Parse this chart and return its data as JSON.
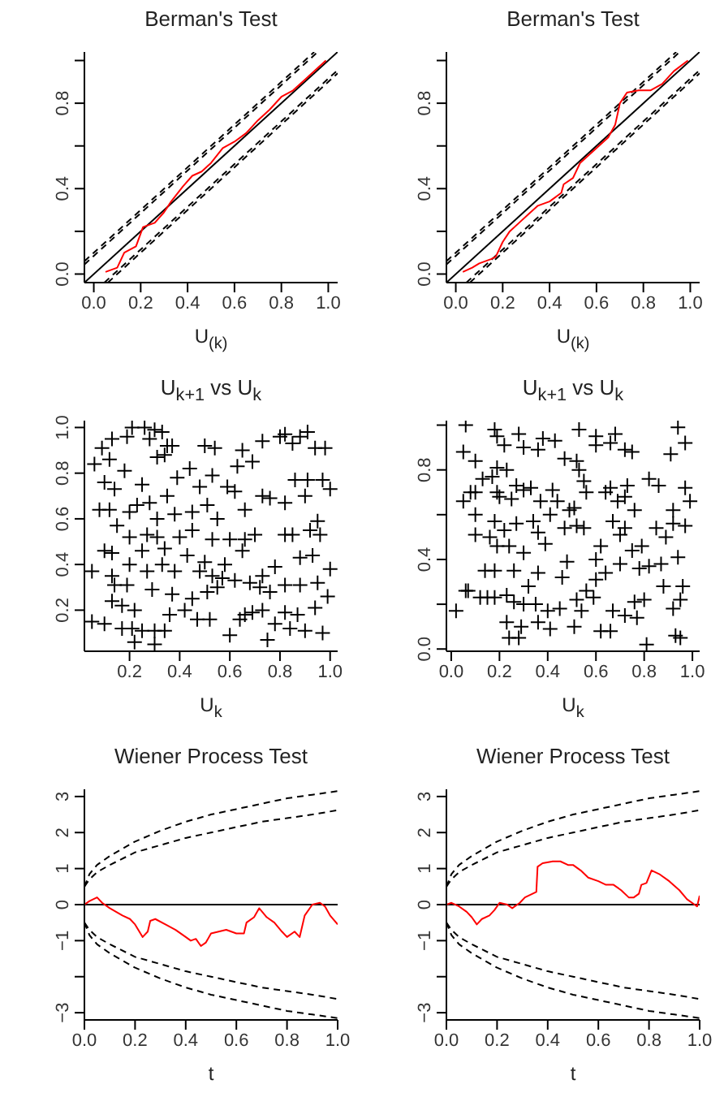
{
  "chart_data": [
    {
      "type": "line",
      "title": "Berman's Test",
      "xlabel": "U$_{(k)}$",
      "xlim": [
        -0.04,
        1.04
      ],
      "ylim": [
        -0.04,
        1.04
      ],
      "xticks": [
        {
          "value": 0,
          "label": "0.0"
        },
        {
          "value": 0.2,
          "label": "0.2"
        },
        {
          "value": 0.4,
          "label": "0.4"
        },
        {
          "value": 0.6,
          "label": "0.6"
        },
        {
          "value": 0.8,
          "label": "0.8"
        },
        {
          "value": 1,
          "label": "1.0"
        }
      ],
      "yticks": [
        {
          "value": 0,
          "label": "0.0"
        },
        {
          "value": 0.2,
          "label": null
        },
        {
          "value": 0.4,
          "label": "0.4"
        },
        {
          "value": 0.6,
          "label": null
        },
        {
          "value": 0.8,
          "label": "0.8"
        },
        {
          "value": 1,
          "label": null
        }
      ],
      "series": [
        {
          "color": "#000000",
          "line_style": "solid",
          "x": [
            -0.04,
            1.04
          ],
          "values": [
            -0.04,
            1.04
          ]
        },
        {
          "color": "#000000",
          "line_style": "dashed",
          "x": [
            -0.04,
            0.94
          ],
          "values": [
            0.06,
            1.04
          ]
        },
        {
          "color": "#000000",
          "line_style": "dashed",
          "x": [
            -0.04,
            0.955
          ],
          "values": [
            0.045,
            1.04
          ]
        },
        {
          "color": "#000000",
          "line_style": "dashed",
          "x": [
            0.06,
            1.04
          ],
          "values": [
            -0.04,
            0.94
          ]
        },
        {
          "color": "#000000",
          "line_style": "dashed",
          "x": [
            0.045,
            1.04
          ],
          "values": [
            -0.04,
            0.955
          ]
        },
        {
          "color": "#ff0000",
          "line_style": "solid",
          "x": [
            0.05,
            0.1,
            0.13,
            0.18,
            0.21,
            0.26,
            0.3,
            0.33,
            0.38,
            0.42,
            0.46,
            0.5,
            0.55,
            0.6,
            0.65,
            0.7,
            0.75,
            0.8,
            0.85,
            0.9,
            0.95,
            0.99
          ],
          "values": [
            0.01,
            0.03,
            0.1,
            0.13,
            0.22,
            0.24,
            0.29,
            0.34,
            0.41,
            0.46,
            0.48,
            0.52,
            0.59,
            0.62,
            0.66,
            0.72,
            0.77,
            0.83,
            0.86,
            0.91,
            0.96,
            1.0
          ]
        }
      ]
    },
    {
      "type": "line",
      "title": "Berman's Test",
      "xlabel": "U$_{(k)}$",
      "xlim": [
        -0.04,
        1.04
      ],
      "ylim": [
        -0.04,
        1.04
      ],
      "xticks": [
        {
          "value": 0,
          "label": "0.0"
        },
        {
          "value": 0.2,
          "label": "0.2"
        },
        {
          "value": 0.4,
          "label": "0.4"
        },
        {
          "value": 0.6,
          "label": "0.6"
        },
        {
          "value": 0.8,
          "label": "0.8"
        },
        {
          "value": 1,
          "label": "1.0"
        }
      ],
      "yticks": [
        {
          "value": 0,
          "label": "0.0"
        },
        {
          "value": 0.2,
          "label": null
        },
        {
          "value": 0.4,
          "label": "0.4"
        },
        {
          "value": 0.6,
          "label": null
        },
        {
          "value": 0.8,
          "label": "0.8"
        },
        {
          "value": 1,
          "label": null
        }
      ],
      "series": [
        {
          "color": "#000000",
          "line_style": "solid",
          "x": [
            -0.04,
            1.04
          ],
          "values": [
            -0.04,
            1.04
          ]
        },
        {
          "color": "#000000",
          "line_style": "dashed",
          "x": [
            -0.04,
            0.94
          ],
          "values": [
            0.06,
            1.04
          ]
        },
        {
          "color": "#000000",
          "line_style": "dashed",
          "x": [
            -0.04,
            0.955
          ],
          "values": [
            0.045,
            1.04
          ]
        },
        {
          "color": "#000000",
          "line_style": "dashed",
          "x": [
            0.06,
            1.04
          ],
          "values": [
            -0.04,
            0.94
          ]
        },
        {
          "color": "#000000",
          "line_style": "dashed",
          "x": [
            0.045,
            1.04
          ],
          "values": [
            -0.04,
            0.955
          ]
        },
        {
          "color": "#ff0000",
          "line_style": "solid",
          "x": [
            0.03,
            0.07,
            0.1,
            0.15,
            0.17,
            0.2,
            0.23,
            0.27,
            0.31,
            0.35,
            0.4,
            0.45,
            0.46,
            0.5,
            0.53,
            0.57,
            0.61,
            0.65,
            0.68,
            0.7,
            0.73,
            0.78,
            0.83,
            0.88,
            0.93,
            0.99
          ],
          "values": [
            0.01,
            0.03,
            0.05,
            0.07,
            0.08,
            0.15,
            0.2,
            0.24,
            0.28,
            0.32,
            0.34,
            0.38,
            0.42,
            0.45,
            0.52,
            0.56,
            0.6,
            0.64,
            0.7,
            0.8,
            0.85,
            0.86,
            0.86,
            0.89,
            0.95,
            1.0
          ]
        }
      ]
    },
    {
      "type": "scatter",
      "title": "U$_{k+1}$ vs U$_{k}$",
      "xlabel": "U$_{k}$",
      "xlim": [
        0.02,
        1.03
      ],
      "ylim": [
        0.02,
        1.03
      ],
      "marker": "cross",
      "xticks": [
        {
          "value": 0.2,
          "label": "0.2"
        },
        {
          "value": 0.4,
          "label": "0.4"
        },
        {
          "value": 0.6,
          "label": "0.6"
        },
        {
          "value": 0.8,
          "label": "0.8"
        },
        {
          "value": 1,
          "label": "1.0"
        }
      ],
      "yticks": [
        {
          "value": 0.2,
          "label": "0.2"
        },
        {
          "value": 0.4,
          "label": "0.4"
        },
        {
          "value": 0.6,
          "label": "0.6"
        },
        {
          "value": 0.8,
          "label": "0.8"
        },
        {
          "value": 1,
          "label": "1.0"
        }
      ],
      "series": [
        {
          "color": "#000000",
          "x": [
            0.06,
            0.09,
            0.12,
            0.13,
            0.19,
            0.21,
            0.26,
            0.3,
            0.33,
            0.28,
            0.35,
            0.37,
            0.34,
            0.31,
            0.5,
            0.54,
            0.44,
            0.39,
            0.48,
            0.53,
            0.59,
            0.63,
            0.65,
            0.69,
            0.73,
            0.82,
            0.8,
            0.85,
            0.88,
            0.91,
            0.94,
            0.98,
            0.86,
            0.91,
            0.97,
            1.0,
            0.1,
            0.14,
            0.18,
            0.25,
            0.2,
            0.12,
            0.08,
            0.23,
            0.28,
            0.35,
            0.31,
            0.38,
            0.45,
            0.51,
            0.55,
            0.62,
            0.66,
            0.73,
            0.76,
            0.82,
            0.9,
            0.95,
            0.92,
            0.96,
            0.82,
            0.85,
            0.15,
            0.2,
            0.27,
            0.31,
            0.4,
            0.45,
            0.53,
            0.6,
            0.66,
            0.7,
            0.1,
            0.13,
            0.25,
            0.34,
            0.43,
            0.5,
            0.58,
            0.65,
            0.88,
            0.93,
            0.05,
            0.13,
            0.2,
            0.27,
            0.33,
            0.38,
            0.48,
            0.53,
            0.57,
            0.62,
            0.68,
            0.73,
            0.78,
            0.82,
            0.88,
            0.95,
            1.0,
            0.14,
            0.19,
            0.29,
            0.37,
            0.45,
            0.51,
            0.55,
            0.72,
            0.76,
            0.13,
            0.17,
            0.22,
            0.36,
            0.42,
            0.47,
            0.52,
            0.64,
            0.69,
            0.73,
            0.78,
            0.82,
            0.87,
            0.94,
            0.99,
            0.05,
            0.1,
            0.17,
            0.21,
            0.25,
            0.3,
            0.34,
            0.22,
            0.3,
            0.6,
            0.66,
            0.75,
            0.84,
            0.9,
            0.97
          ],
          "values": [
            0.84,
            0.91,
            0.86,
            0.95,
            0.96,
            1.0,
            1.0,
            0.99,
            0.98,
            0.95,
            0.92,
            0.92,
            0.88,
            0.87,
            0.92,
            0.91,
            0.82,
            0.78,
            0.74,
            0.79,
            0.74,
            0.83,
            0.9,
            0.85,
            0.94,
            0.97,
            0.96,
            0.93,
            0.96,
            0.98,
            0.91,
            0.91,
            0.77,
            0.77,
            0.77,
            0.73,
            0.76,
            0.73,
            0.81,
            0.75,
            0.63,
            0.64,
            0.64,
            0.66,
            0.67,
            0.7,
            0.6,
            0.62,
            0.63,
            0.66,
            0.6,
            0.72,
            0.64,
            0.7,
            0.69,
            0.67,
            0.7,
            0.59,
            0.55,
            0.53,
            0.53,
            0.53,
            0.57,
            0.52,
            0.53,
            0.52,
            0.52,
            0.55,
            0.51,
            0.51,
            0.51,
            0.53,
            0.46,
            0.45,
            0.46,
            0.47,
            0.44,
            0.41,
            0.4,
            0.46,
            0.43,
            0.44,
            0.37,
            0.35,
            0.4,
            0.37,
            0.4,
            0.37,
            0.37,
            0.35,
            0.34,
            0.33,
            0.32,
            0.35,
            0.39,
            0.31,
            0.31,
            0.32,
            0.38,
            0.31,
            0.31,
            0.29,
            0.27,
            0.25,
            0.28,
            0.3,
            0.3,
            0.28,
            0.24,
            0.22,
            0.2,
            0.18,
            0.2,
            0.16,
            0.16,
            0.16,
            0.19,
            0.2,
            0.14,
            0.19,
            0.18,
            0.21,
            0.26,
            0.15,
            0.14,
            0.12,
            0.12,
            0.11,
            0.11,
            0.11,
            0.06,
            0.05,
            0.09,
            0.18,
            0.07,
            0.12,
            0.11,
            0.1
          ]
        }
      ]
    },
    {
      "type": "scatter",
      "title": "U$_{k+1}$ vs U$_{k}$",
      "xlabel": "U$_{k}$",
      "xlim": [
        -0.02,
        1.03
      ],
      "ylim": [
        -0.01,
        1.02
      ],
      "marker": "cross",
      "xticks": [
        {
          "value": 0,
          "label": "0.0"
        },
        {
          "value": 0.2,
          "label": "0.2"
        },
        {
          "value": 0.4,
          "label": "0.4"
        },
        {
          "value": 0.6,
          "label": "0.6"
        },
        {
          "value": 0.8,
          "label": "0.8"
        },
        {
          "value": 1,
          "label": "1.0"
        }
      ],
      "yticks": [
        {
          "value": 0,
          "label": "0.0"
        },
        {
          "value": 0.2,
          "label": null
        },
        {
          "value": 0.4,
          "label": "0.4"
        },
        {
          "value": 0.6,
          "label": null
        },
        {
          "value": 0.8,
          "label": "0.8"
        },
        {
          "value": 1,
          "label": null
        }
      ],
      "series": [
        {
          "color": "#000000",
          "x": [
            0.06,
            0.05,
            0.1,
            0.18,
            0.19,
            0.22,
            0.28,
            0.3,
            0.36,
            0.38,
            0.43,
            0.47,
            0.53,
            0.52,
            0.6,
            0.6,
            0.66,
            0.68,
            0.72,
            0.75,
            0.94,
            0.97,
            0.91,
            0.05,
            0.08,
            0.1,
            0.13,
            0.17,
            0.19,
            0.23,
            0.19,
            0.2,
            0.25,
            0.27,
            0.3,
            0.33,
            0.37,
            0.42,
            0.44,
            0.49,
            0.51,
            0.53,
            0.55,
            0.56,
            0.64,
            0.66,
            0.69,
            0.72,
            0.73,
            0.76,
            0.82,
            0.86,
            0.92,
            0.97,
            0.99,
            0.1,
            0.1,
            0.18,
            0.16,
            0.19,
            0.22,
            0.24,
            0.27,
            0.3,
            0.34,
            0.36,
            0.39,
            0.41,
            0.47,
            0.52,
            0.55,
            0.6,
            0.62,
            0.67,
            0.7,
            0.72,
            0.75,
            0.79,
            0.85,
            0.89,
            0.92,
            0.97,
            0.14,
            0.18,
            0.26,
            0.32,
            0.36,
            0.46,
            0.48,
            0.56,
            0.6,
            0.64,
            0.7,
            0.78,
            0.82,
            0.87,
            0.94,
            0.06,
            0.07,
            0.12,
            0.15,
            0.18,
            0.23,
            0.26,
            0.3,
            0.35,
            0.4,
            0.45,
            0.52,
            0.54,
            0.59,
            0.67,
            0.72,
            0.76,
            0.8,
            0.88,
            0.92,
            0.95,
            0.02,
            0.23,
            0.24,
            0.28,
            0.29,
            0.36,
            0.41,
            0.51,
            0.62,
            0.66,
            0.77,
            0.81,
            0.93,
            0.95,
            0.96
          ],
          "values": [
            1.0,
            0.88,
            0.84,
            0.98,
            0.95,
            0.91,
            0.96,
            0.9,
            0.89,
            0.94,
            0.93,
            0.85,
            0.98,
            0.84,
            0.95,
            0.91,
            0.92,
            0.96,
            0.89,
            0.88,
            0.99,
            0.92,
            0.87,
            0.66,
            0.7,
            0.7,
            0.76,
            0.77,
            0.81,
            0.8,
            0.7,
            0.68,
            0.67,
            0.73,
            0.71,
            0.72,
            0.66,
            0.71,
            0.66,
            0.62,
            0.63,
            0.8,
            0.75,
            0.7,
            0.7,
            0.72,
            0.66,
            0.68,
            0.73,
            0.62,
            0.76,
            0.73,
            0.62,
            0.72,
            0.66,
            0.6,
            0.51,
            0.57,
            0.5,
            0.46,
            0.53,
            0.46,
            0.56,
            0.43,
            0.57,
            0.52,
            0.47,
            0.6,
            0.54,
            0.55,
            0.54,
            0.4,
            0.46,
            0.57,
            0.51,
            0.54,
            0.44,
            0.46,
            0.54,
            0.5,
            0.56,
            0.55,
            0.35,
            0.35,
            0.35,
            0.28,
            0.34,
            0.32,
            0.39,
            0.26,
            0.31,
            0.34,
            0.38,
            0.36,
            0.37,
            0.38,
            0.41,
            0.26,
            0.26,
            0.23,
            0.23,
            0.23,
            0.24,
            0.21,
            0.2,
            0.2,
            0.17,
            0.18,
            0.22,
            0.17,
            0.23,
            0.17,
            0.15,
            0.21,
            0.22,
            0.28,
            0.18,
            0.22,
            0.17,
            0.12,
            0.05,
            0.05,
            0.1,
            0.12,
            0.09,
            0.1,
            0.08,
            0.08,
            0.14,
            0.02,
            0.06,
            0.05,
            0.28
          ]
        }
      ]
    },
    {
      "type": "line",
      "title": "Wiener Process Test",
      "xlabel": "t",
      "xlim": [
        0,
        1
      ],
      "ylim": [
        -3.2,
        3.2
      ],
      "xticks": [
        {
          "value": 0,
          "label": "0.0"
        },
        {
          "value": 0.2,
          "label": "0.2"
        },
        {
          "value": 0.4,
          "label": "0.4"
        },
        {
          "value": 0.6,
          "label": "0.6"
        },
        {
          "value": 0.8,
          "label": "0.8"
        },
        {
          "value": 1,
          "label": "1.0"
        }
      ],
      "yticks": [
        {
          "value": -3,
          "label": "−3"
        },
        {
          "value": -2,
          "label": null
        },
        {
          "value": -1,
          "label": "−1"
        },
        {
          "value": 0,
          "label": "0"
        },
        {
          "value": 1,
          "label": "1"
        },
        {
          "value": 2,
          "label": "2"
        },
        {
          "value": 3,
          "label": "3"
        }
      ],
      "ref_lines": [
        {
          "axis": "y",
          "value": 0,
          "color": "#000000",
          "line_style": "solid"
        }
      ],
      "series": [
        {
          "color": "#000000",
          "line_style": "dashed",
          "x": [
            0,
            0.02,
            0.05,
            0.1,
            0.2,
            0.3,
            0.4,
            0.5,
            0.6,
            0.7,
            0.8,
            0.9,
            1.0
          ],
          "values": [
            0.5,
            0.85,
            1.1,
            1.35,
            1.75,
            2.05,
            2.3,
            2.5,
            2.65,
            2.8,
            2.95,
            3.05,
            3.15
          ]
        },
        {
          "color": "#000000",
          "line_style": "dashed",
          "x": [
            0,
            0.02,
            0.05,
            0.1,
            0.2,
            0.3,
            0.4,
            0.5,
            0.6,
            0.7,
            0.8,
            0.9,
            1.0
          ],
          "values": [
            0.5,
            0.7,
            0.9,
            1.1,
            1.45,
            1.65,
            1.85,
            2.0,
            2.15,
            2.3,
            2.4,
            2.5,
            2.62
          ]
        },
        {
          "color": "#000000",
          "line_style": "dashed",
          "x": [
            0,
            0.02,
            0.05,
            0.1,
            0.2,
            0.3,
            0.4,
            0.5,
            0.6,
            0.7,
            0.8,
            0.9,
            1.0
          ],
          "values": [
            -0.5,
            -0.85,
            -1.1,
            -1.35,
            -1.75,
            -2.05,
            -2.3,
            -2.5,
            -2.65,
            -2.8,
            -2.95,
            -3.05,
            -3.15
          ]
        },
        {
          "color": "#000000",
          "line_style": "dashed",
          "x": [
            0,
            0.02,
            0.05,
            0.1,
            0.2,
            0.3,
            0.4,
            0.5,
            0.6,
            0.7,
            0.8,
            0.9,
            1.0
          ],
          "values": [
            -0.5,
            -0.7,
            -0.9,
            -1.1,
            -1.45,
            -1.65,
            -1.85,
            -2.0,
            -2.15,
            -2.3,
            -2.4,
            -2.5,
            -2.62
          ]
        },
        {
          "color": "#ff0000",
          "line_style": "solid",
          "x": [
            0,
            0.02,
            0.05,
            0.07,
            0.1,
            0.15,
            0.18,
            0.2,
            0.23,
            0.25,
            0.26,
            0.28,
            0.32,
            0.36,
            0.4,
            0.42,
            0.44,
            0.46,
            0.48,
            0.5,
            0.53,
            0.56,
            0.6,
            0.63,
            0.64,
            0.67,
            0.69,
            0.72,
            0.75,
            0.78,
            0.8,
            0.83,
            0.85,
            0.87,
            0.9,
            0.93,
            0.95,
            0.97,
            1.0
          ],
          "values": [
            0,
            0.1,
            0.2,
            0.05,
            -0.1,
            -0.3,
            -0.4,
            -0.55,
            -0.9,
            -0.75,
            -0.45,
            -0.4,
            -0.55,
            -0.7,
            -0.9,
            -1.0,
            -0.95,
            -1.15,
            -1.05,
            -0.8,
            -0.75,
            -0.7,
            -0.8,
            -0.8,
            -0.5,
            -0.35,
            -0.1,
            -0.35,
            -0.5,
            -0.75,
            -0.9,
            -0.75,
            -0.9,
            -0.3,
            0,
            0.05,
            -0.05,
            -0.3,
            -0.55
          ]
        }
      ]
    },
    {
      "type": "line",
      "title": "Wiener Process Test",
      "xlabel": "t",
      "xlim": [
        0,
        1
      ],
      "ylim": [
        -3.2,
        3.2
      ],
      "xticks": [
        {
          "value": 0,
          "label": "0.0"
        },
        {
          "value": 0.2,
          "label": "0.2"
        },
        {
          "value": 0.4,
          "label": "0.4"
        },
        {
          "value": 0.6,
          "label": "0.6"
        },
        {
          "value": 0.8,
          "label": "0.8"
        },
        {
          "value": 1,
          "label": "1.0"
        }
      ],
      "yticks": [
        {
          "value": -3,
          "label": "−3"
        },
        {
          "value": -2,
          "label": null
        },
        {
          "value": -1,
          "label": "−1"
        },
        {
          "value": 0,
          "label": "0"
        },
        {
          "value": 1,
          "label": "1"
        },
        {
          "value": 2,
          "label": "2"
        },
        {
          "value": 3,
          "label": "3"
        }
      ],
      "ref_lines": [
        {
          "axis": "y",
          "value": 0,
          "color": "#000000",
          "line_style": "solid"
        }
      ],
      "series": [
        {
          "color": "#000000",
          "line_style": "dashed",
          "x": [
            0,
            0.02,
            0.05,
            0.1,
            0.2,
            0.3,
            0.4,
            0.5,
            0.6,
            0.7,
            0.8,
            0.9,
            1.0
          ],
          "values": [
            0.5,
            0.85,
            1.1,
            1.35,
            1.75,
            2.05,
            2.3,
            2.5,
            2.65,
            2.8,
            2.95,
            3.05,
            3.15
          ]
        },
        {
          "color": "#000000",
          "line_style": "dashed",
          "x": [
            0,
            0.02,
            0.05,
            0.1,
            0.2,
            0.3,
            0.4,
            0.5,
            0.6,
            0.7,
            0.8,
            0.9,
            1.0
          ],
          "values": [
            0.5,
            0.7,
            0.9,
            1.1,
            1.45,
            1.65,
            1.85,
            2.0,
            2.15,
            2.3,
            2.4,
            2.5,
            2.62
          ]
        },
        {
          "color": "#000000",
          "line_style": "dashed",
          "x": [
            0,
            0.02,
            0.05,
            0.1,
            0.2,
            0.3,
            0.4,
            0.5,
            0.6,
            0.7,
            0.8,
            0.9,
            1.0
          ],
          "values": [
            -0.5,
            -0.85,
            -1.1,
            -1.35,
            -1.75,
            -2.05,
            -2.3,
            -2.5,
            -2.65,
            -2.8,
            -2.95,
            -3.05,
            -3.15
          ]
        },
        {
          "color": "#000000",
          "line_style": "dashed",
          "x": [
            0,
            0.02,
            0.05,
            0.1,
            0.2,
            0.3,
            0.4,
            0.5,
            0.6,
            0.7,
            0.8,
            0.9,
            1.0
          ],
          "values": [
            -0.5,
            -0.7,
            -0.9,
            -1.1,
            -1.45,
            -1.65,
            -1.85,
            -2.0,
            -2.15,
            -2.3,
            -2.4,
            -2.5,
            -2.62
          ]
        },
        {
          "color": "#ff0000",
          "line_style": "solid",
          "x": [
            0,
            0.02,
            0.05,
            0.08,
            0.1,
            0.12,
            0.14,
            0.17,
            0.19,
            0.21,
            0.24,
            0.26,
            0.29,
            0.31,
            0.34,
            0.355,
            0.36,
            0.38,
            0.42,
            0.45,
            0.48,
            0.5,
            0.53,
            0.56,
            0.6,
            0.63,
            0.66,
            0.69,
            0.72,
            0.74,
            0.76,
            0.77,
            0.79,
            0.81,
            0.84,
            0.88,
            0.92,
            0.95,
            0.98,
            0.99,
            1.0
          ],
          "values": [
            0,
            0.05,
            -0.05,
            -0.2,
            -0.35,
            -0.55,
            -0.4,
            -0.3,
            -0.15,
            0.05,
            0,
            -0.1,
            0.05,
            0.2,
            0.3,
            0.35,
            1.05,
            1.15,
            1.2,
            1.2,
            1.1,
            1.1,
            0.95,
            0.75,
            0.65,
            0.55,
            0.55,
            0.4,
            0.2,
            0.2,
            0.3,
            0.55,
            0.6,
            0.95,
            0.85,
            0.65,
            0.4,
            0.15,
            0,
            -0.05,
            0.25
          ]
        }
      ]
    }
  ]
}
